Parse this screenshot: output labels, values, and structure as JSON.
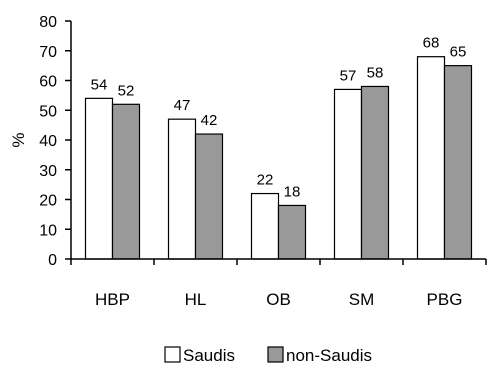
{
  "chart_data": {
    "type": "bar",
    "categories": [
      "HBP",
      "HL",
      "OB",
      "SM",
      "PBG"
    ],
    "series": [
      {
        "name": "Saudis",
        "values": [
          54,
          47,
          22,
          57,
          68
        ],
        "color": "#ffffff"
      },
      {
        "name": "non-Saudis",
        "values": [
          52,
          42,
          18,
          58,
          65
        ],
        "color": "#999999"
      }
    ],
    "ylabel": "%",
    "xlabel": "",
    "ylim": [
      0,
      80
    ],
    "yticks": [
      0,
      10,
      20,
      30,
      40,
      50,
      60,
      70,
      80
    ],
    "grid": false,
    "legend_position": "bottom",
    "data_labels": true
  }
}
